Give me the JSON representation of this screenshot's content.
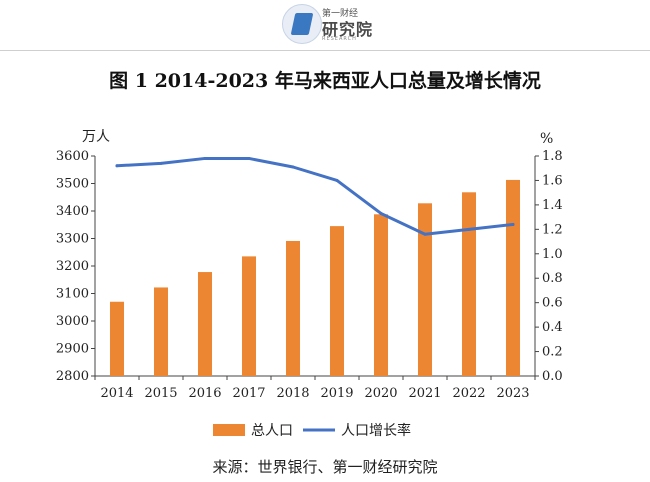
{
  "logo": {
    "top_text": "第一财经",
    "main_text": "研究院",
    "sub_text": "RESEARCH"
  },
  "title": "图 1 2014-2023 年马来西亚人口总量及增长情况",
  "source": "来源：世界银行、第一财经研究院",
  "colors": {
    "bar": "#ed8632",
    "line": "#4472c4",
    "axis": "#444444"
  },
  "chart_data": {
    "type": "bar",
    "categories": [
      "2014",
      "2015",
      "2016",
      "2017",
      "2018",
      "2019",
      "2020",
      "2021",
      "2022",
      "2023"
    ],
    "series": [
      {
        "name": "总人口",
        "type": "bar",
        "axis": "left",
        "values": [
          3070,
          3122,
          3178,
          3235,
          3291,
          3345,
          3388,
          3428,
          3468,
          3513
        ]
      },
      {
        "name": "人口增长率",
        "type": "line",
        "axis": "right",
        "values": [
          1.72,
          1.74,
          1.78,
          1.78,
          1.71,
          1.6,
          1.33,
          1.16,
          1.2,
          1.24
        ]
      }
    ],
    "y_left": {
      "label": "万人",
      "ylim": [
        2800,
        3600
      ],
      "ticks": [
        "2800",
        "2900",
        "3000",
        "3100",
        "3200",
        "3300",
        "3400",
        "3500",
        "3600"
      ]
    },
    "y_right": {
      "label": "%",
      "ylim": [
        0,
        1.8
      ],
      "ticks": [
        "0.0",
        "0.2",
        "0.4",
        "0.6",
        "0.8",
        "1.0",
        "1.2",
        "1.4",
        "1.6",
        "1.8"
      ]
    },
    "grid": false,
    "legend_position": "bottom"
  }
}
